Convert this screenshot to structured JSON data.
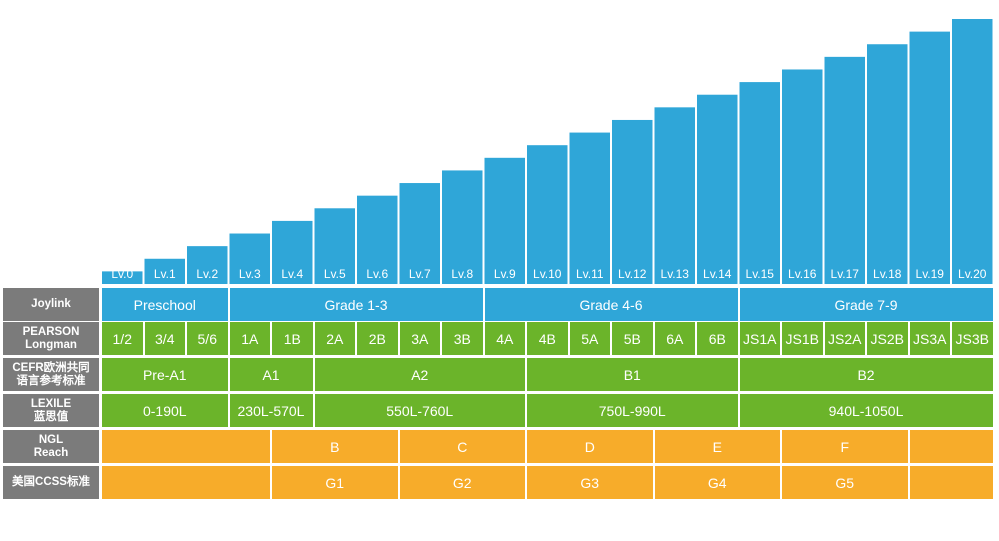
{
  "chart_data": {
    "type": "bar",
    "title": "",
    "xlabel": "",
    "ylabel": "",
    "categories": [
      "Lv.0",
      "Lv.1",
      "Lv.2",
      "Lv.3",
      "Lv.4",
      "Lv.5",
      "Lv.6",
      "Lv.7",
      "Lv.8",
      "Lv.9",
      "Lv.10",
      "Lv.11",
      "Lv.12",
      "Lv.13",
      "Lv.14",
      "Lv.15",
      "Lv.16",
      "Lv.17",
      "Lv.18",
      "Lv.19",
      "Lv.20"
    ],
    "values": [
      1,
      2,
      3,
      4,
      5,
      6,
      7,
      8,
      9,
      10,
      11,
      12,
      13,
      14,
      15,
      16,
      17,
      18,
      19,
      20,
      21
    ],
    "ylim": [
      0,
      21
    ],
    "color": "#2fa6d8"
  },
  "table": {
    "rows": [
      {
        "label": "Joylink",
        "color": "#2fa6d8",
        "cells": [
          {
            "text": "Preschool",
            "span": 3
          },
          {
            "text": "Grade 1-3",
            "span": 6
          },
          {
            "text": "Grade 4-6",
            "span": 6
          },
          {
            "text": "Grade 7-9",
            "span": 6
          }
        ]
      },
      {
        "label": "PEARSON\nLongman",
        "color": "#6bb42a",
        "cells": [
          {
            "text": "1/2",
            "span": 1
          },
          {
            "text": "3/4",
            "span": 1
          },
          {
            "text": "5/6",
            "span": 1
          },
          {
            "text": "1A",
            "span": 1
          },
          {
            "text": "1B",
            "span": 1
          },
          {
            "text": "2A",
            "span": 1
          },
          {
            "text": "2B",
            "span": 1
          },
          {
            "text": "3A",
            "span": 1
          },
          {
            "text": "3B",
            "span": 1
          },
          {
            "text": "4A",
            "span": 1
          },
          {
            "text": "4B",
            "span": 1
          },
          {
            "text": "5A",
            "span": 1
          },
          {
            "text": "5B",
            "span": 1
          },
          {
            "text": "6A",
            "span": 1
          },
          {
            "text": "6B",
            "span": 1
          },
          {
            "text": "JS1A",
            "span": 1
          },
          {
            "text": "JS1B",
            "span": 1
          },
          {
            "text": "JS2A",
            "span": 1
          },
          {
            "text": "JS2B",
            "span": 1
          },
          {
            "text": "JS3A",
            "span": 1
          },
          {
            "text": "JS3B",
            "span": 1
          }
        ]
      },
      {
        "label": "CEFR欧洲共同\n语言参考标准",
        "color": "#6bb42a",
        "cells": [
          {
            "text": "Pre-A1",
            "span": 3
          },
          {
            "text": "A1",
            "span": 2
          },
          {
            "text": "A2",
            "span": 5
          },
          {
            "text": "B1",
            "span": 5
          },
          {
            "text": "B2",
            "span": 6
          }
        ]
      },
      {
        "label": "LEXILE\n蓝思值",
        "color": "#6bb42a",
        "cells": [
          {
            "text": "0-190L",
            "span": 3
          },
          {
            "text": "230L-570L",
            "span": 2
          },
          {
            "text": "550L-760L",
            "span": 5
          },
          {
            "text": "750L-990L",
            "span": 5
          },
          {
            "text": "940L-1050L",
            "span": 6
          }
        ]
      },
      {
        "label": "NGL\nReach",
        "color": "#f7ac2a",
        "cells": [
          {
            "text": "",
            "span": 4
          },
          {
            "text": "B",
            "span": 3
          },
          {
            "text": "C",
            "span": 3
          },
          {
            "text": "D",
            "span": 3
          },
          {
            "text": "E",
            "span": 3
          },
          {
            "text": "F",
            "span": 3
          },
          {
            "text": "",
            "span": 2
          }
        ]
      },
      {
        "label": "美国CCSS标准",
        "color": "#f7ac2a",
        "cells": [
          {
            "text": "",
            "span": 4
          },
          {
            "text": "G1",
            "span": 3
          },
          {
            "text": "G2",
            "span": 3
          },
          {
            "text": "G3",
            "span": 3
          },
          {
            "text": "G4",
            "span": 3
          },
          {
            "text": "G5",
            "span": 3
          },
          {
            "text": "",
            "span": 2
          }
        ]
      }
    ]
  }
}
